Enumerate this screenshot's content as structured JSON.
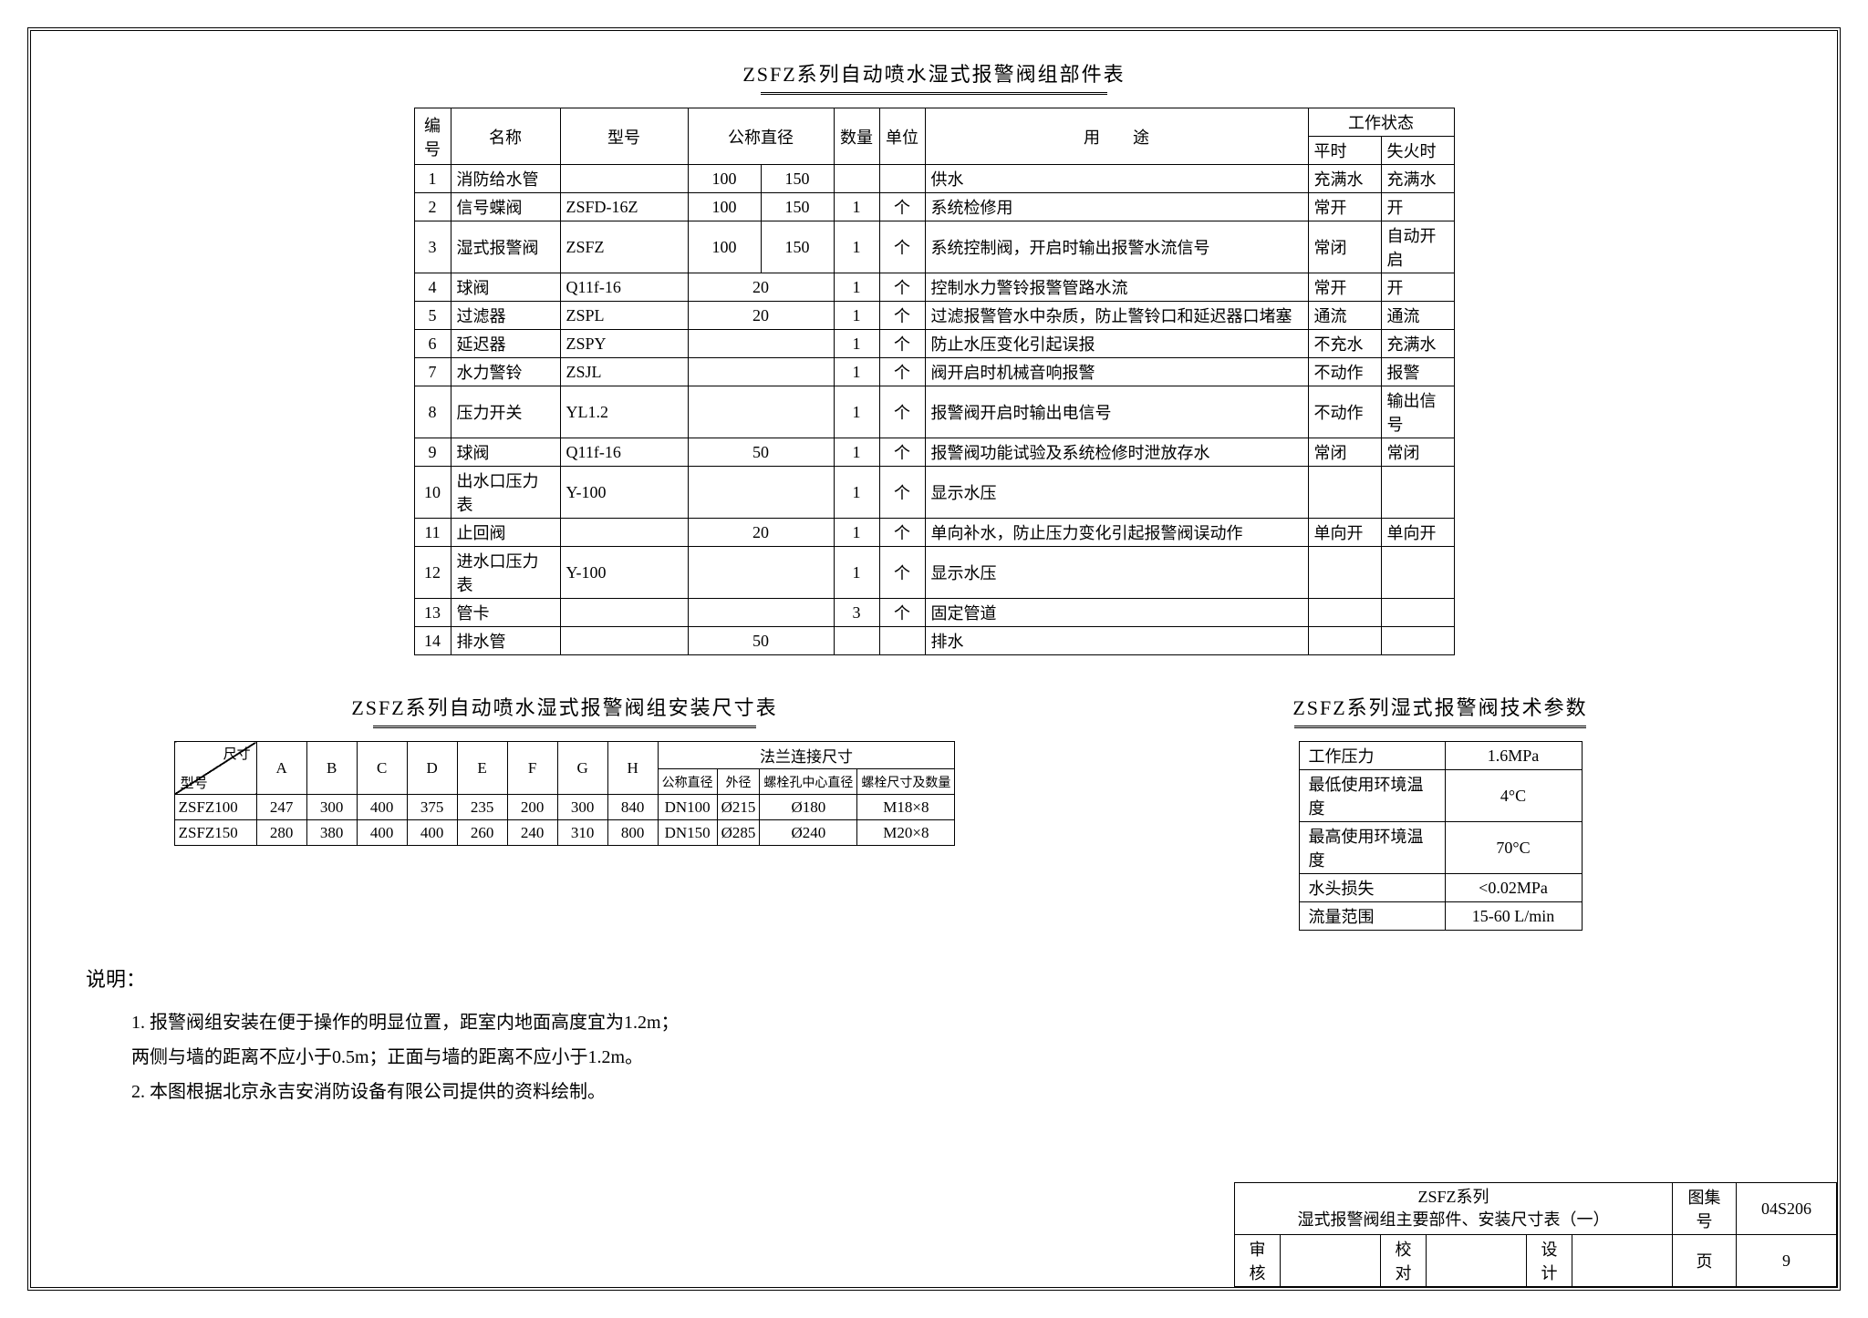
{
  "table1": {
    "title": "ZSFZ系列自动喷水湿式报警阀组部件表",
    "headers": {
      "num": "编号",
      "name": "名称",
      "model": "型号",
      "diameter": "公称直径",
      "qty": "数量",
      "unit": "单位",
      "purpose": "用　　途",
      "state": "工作状态",
      "normal": "平时",
      "fire": "失火时"
    },
    "rows": [
      {
        "n": "1",
        "name": "消防给水管",
        "model": "",
        "d1": "100",
        "d2": "150",
        "qty": "",
        "unit": "",
        "purpose": "供水",
        "s1": "充满水",
        "s2": "充满水"
      },
      {
        "n": "2",
        "name": "信号蝶阀",
        "model": "ZSFD-16Z",
        "d1": "100",
        "d2": "150",
        "qty": "1",
        "unit": "个",
        "purpose": "系统检修用",
        "s1": "常开",
        "s2": "开"
      },
      {
        "n": "3",
        "name": "湿式报警阀",
        "model": "ZSFZ",
        "d1": "100",
        "d2": "150",
        "qty": "1",
        "unit": "个",
        "purpose": "系统控制阀，开启时输出报警水流信号",
        "s1": "常闭",
        "s2": "自动开启"
      },
      {
        "n": "4",
        "name": "球阀",
        "model": "Q11f-16",
        "d": "20",
        "qty": "1",
        "unit": "个",
        "purpose": "控制水力警铃报警管路水流",
        "s1": "常开",
        "s2": "开"
      },
      {
        "n": "5",
        "name": "过滤器",
        "model": "ZSPL",
        "d": "20",
        "qty": "1",
        "unit": "个",
        "purpose": "过滤报警管水中杂质，防止警铃口和延迟器口堵塞",
        "s1": "通流",
        "s2": "通流"
      },
      {
        "n": "6",
        "name": "延迟器",
        "model": "ZSPY",
        "d": "",
        "qty": "1",
        "unit": "个",
        "purpose": "防止水压变化引起误报",
        "s1": "不充水",
        "s2": "充满水"
      },
      {
        "n": "7",
        "name": "水力警铃",
        "model": "ZSJL",
        "d": "",
        "qty": "1",
        "unit": "个",
        "purpose": "阀开启时机械音响报警",
        "s1": "不动作",
        "s2": "报警"
      },
      {
        "n": "8",
        "name": "压力开关",
        "model": "YL1.2",
        "d": "",
        "qty": "1",
        "unit": "个",
        "purpose": "报警阀开启时输出电信号",
        "s1": "不动作",
        "s2": "输出信号"
      },
      {
        "n": "9",
        "name": "球阀",
        "model": "Q11f-16",
        "d": "50",
        "qty": "1",
        "unit": "个",
        "purpose": "报警阀功能试验及系统检修时泄放存水",
        "s1": "常闭",
        "s2": "常闭"
      },
      {
        "n": "10",
        "name": "出水口压力表",
        "model": "Y-100",
        "d": "",
        "qty": "1",
        "unit": "个",
        "purpose": "显示水压",
        "s1": "",
        "s2": ""
      },
      {
        "n": "11",
        "name": "止回阀",
        "model": "",
        "d": "20",
        "qty": "1",
        "unit": "个",
        "purpose": "单向补水，防止压力变化引起报警阀误动作",
        "s1": "单向开",
        "s2": "单向开"
      },
      {
        "n": "12",
        "name": "进水口压力表",
        "model": "Y-100",
        "d": "",
        "qty": "1",
        "unit": "个",
        "purpose": "显示水压",
        "s1": "",
        "s2": ""
      },
      {
        "n": "13",
        "name": "管卡",
        "model": "",
        "d": "",
        "qty": "3",
        "unit": "个",
        "purpose": "固定管道",
        "s1": "",
        "s2": ""
      },
      {
        "n": "14",
        "name": "排水管",
        "model": "",
        "d": "50",
        "qty": "",
        "unit": "",
        "purpose": "排水",
        "s1": "",
        "s2": ""
      }
    ]
  },
  "table2": {
    "title": "ZSFZ系列自动喷水湿式报警阀组安装尺寸表",
    "diag_top": "尺寸",
    "diag_bot": "型号",
    "cols": [
      "A",
      "B",
      "C",
      "D",
      "E",
      "F",
      "G",
      "H"
    ],
    "flange": {
      "title": "法兰连接尺寸",
      "sub": [
        "公称直径",
        "外径",
        "螺栓孔中心直径",
        "螺栓尺寸及数量"
      ]
    },
    "rows": [
      {
        "m": "ZSFZ100",
        "v": [
          "247",
          "300",
          "400",
          "375",
          "235",
          "200",
          "300",
          "840"
        ],
        "f": [
          "DN100",
          "Ø215",
          "Ø180",
          "M18×8"
        ]
      },
      {
        "m": "ZSFZ150",
        "v": [
          "280",
          "380",
          "400",
          "400",
          "260",
          "240",
          "310",
          "800"
        ],
        "f": [
          "DN150",
          "Ø285",
          "Ø240",
          "M20×8"
        ]
      }
    ]
  },
  "table3": {
    "title": "ZSFZ系列湿式报警阀技术参数",
    "rows": [
      {
        "lab": "工作压力",
        "val": "1.6MPa"
      },
      {
        "lab": "最低使用环境温度",
        "val": "4°C"
      },
      {
        "lab": "最高使用环境温度",
        "val": "70°C"
      },
      {
        "lab": "水头损失",
        "val": "<0.02MPa"
      },
      {
        "lab": "流量范围",
        "val": "15-60 L/min"
      }
    ]
  },
  "notes": {
    "title": "说明：",
    "items": [
      "1. 报警阀组安装在便于操作的明显位置，距室内地面高度宜为1.2m；",
      "   两侧与墙的距离不应小于0.5m；正面与墙的距离不应小于1.2m。",
      "2. 本图根据北京永吉安消防设备有限公司提供的资料绘制。"
    ]
  },
  "titleblock": {
    "main1": "ZSFZ系列",
    "main2": "湿式报警阀组主要部件、安装尺寸表（一）",
    "album_lab": "图集号",
    "album": "04S206",
    "check_lab": "审核",
    "check": "",
    "proof_lab": "校对",
    "proof": "",
    "design_lab": "设计",
    "design": "",
    "page_lab": "页",
    "page": "9"
  }
}
